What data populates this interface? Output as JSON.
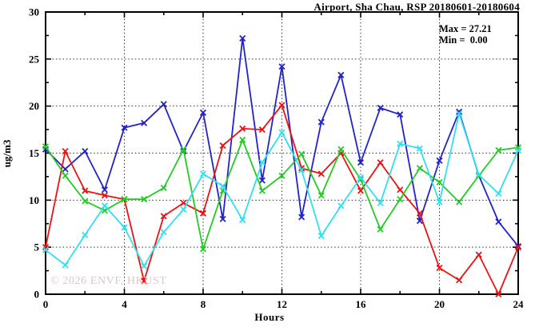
{
  "chart_data": {
    "type": "line",
    "title": "Airport, Sha Chau, RSP 20180601-20180604",
    "xlabel": "Hours",
    "ylabel": "ug/m3",
    "xlim": [
      0,
      24
    ],
    "ylim": [
      0,
      30
    ],
    "x_ticks": [
      "0",
      "4",
      "8",
      "12",
      "16",
      "20",
      "24"
    ],
    "x_minor_step": 2,
    "y_ticks": [
      "0",
      "5",
      "10",
      "15",
      "20",
      "25",
      "30"
    ],
    "y_minor_step": 2.5,
    "grid": "dotted",
    "legend": {
      "position": "top-right-inside",
      "max_label": "Max = 27.21",
      "min_label": "Min =  0.00"
    },
    "watermark": "© 2026 ENVF, HKUST",
    "frame_color": "#000000",
    "x": [
      0,
      1,
      2,
      3,
      4,
      5,
      6,
      7,
      8,
      9,
      10,
      11,
      12,
      13,
      14,
      15,
      16,
      17,
      18,
      19,
      20,
      21,
      22,
      23,
      24
    ],
    "series": [
      {
        "name": "blue-series",
        "color": "#2222cc",
        "marker": "x",
        "values": [
          15.4,
          13.3,
          15.2,
          11.1,
          17.7,
          18.2,
          20.2,
          15.2,
          19.3,
          8.0,
          27.2,
          12.1,
          24.2,
          8.2,
          18.3,
          23.3,
          14.0,
          19.8,
          19.1,
          7.8,
          14.2,
          19.4,
          12.6,
          7.7,
          5.1
        ]
      },
      {
        "name": "red-series",
        "color": "#ee1111",
        "marker": "x",
        "values": [
          5.0,
          15.2,
          11.0,
          10.5,
          10.1,
          1.4,
          8.3,
          9.7,
          8.6,
          15.8,
          17.6,
          17.5,
          20.1,
          13.4,
          12.8,
          15.0,
          11.0,
          14.0,
          11.1,
          8.6,
          2.8,
          1.5,
          4.2,
          0.0,
          5.0
        ]
      },
      {
        "name": "green-series",
        "color": "#22cc22",
        "marker": "x",
        "values": [
          15.7,
          12.6,
          9.9,
          8.9,
          10.1,
          10.1,
          11.3,
          15.4,
          4.8,
          11.0,
          16.4,
          11.0,
          12.6,
          14.9,
          10.5,
          15.4,
          12.2,
          6.9,
          10.1,
          13.4,
          11.9,
          9.8,
          12.6,
          15.3,
          15.6
        ]
      },
      {
        "name": "cyan-series",
        "color": "#30e0f0",
        "marker": "x",
        "values": [
          4.7,
          3.1,
          6.3,
          9.4,
          7.1,
          3.0,
          6.6,
          9.0,
          12.8,
          11.5,
          7.9,
          14.0,
          17.2,
          13.2,
          6.2,
          9.4,
          12.4,
          9.7,
          16.0,
          15.5,
          9.8,
          19.2,
          12.7,
          10.7,
          15.3
        ]
      }
    ]
  }
}
